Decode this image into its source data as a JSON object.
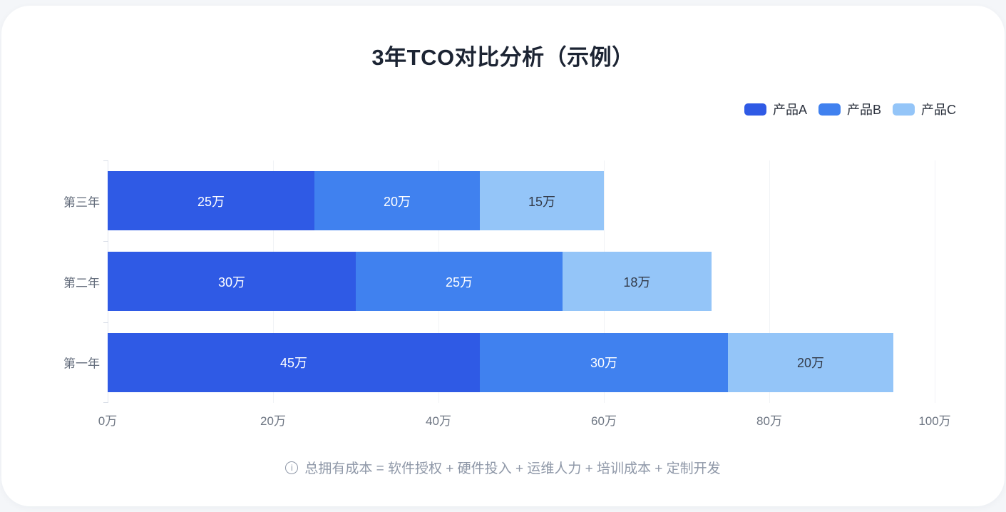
{
  "page": {
    "title": "3年TCO对比分析（示例）"
  },
  "footer": {
    "icon": "info-icon",
    "text": "总拥有成本 = 软件授权 + 硬件投入 + 运维人力 + 培训成本 + 定制开发"
  },
  "chart_data": {
    "type": "bar",
    "orientation": "horizontal",
    "stacked": true,
    "title": "3年TCO对比分析（示例）",
    "legend_position": "top-right",
    "grid": true,
    "xlabel": "",
    "ylabel": "",
    "xlim": [
      0,
      100
    ],
    "x_tick_values": [
      0,
      20,
      40,
      60,
      80,
      100
    ],
    "x_tick_labels": [
      "0万",
      "20万",
      "40万",
      "60万",
      "80万",
      "100万"
    ],
    "value_suffix": "万",
    "series": [
      {
        "name": "产品A",
        "color": "#2F5AE5",
        "label_color": "#FFFFFF",
        "values": [
          45,
          30,
          25
        ]
      },
      {
        "name": "产品B",
        "color": "#4081EF",
        "label_color": "#FFFFFF",
        "values": [
          30,
          25,
          20
        ]
      },
      {
        "name": "产品C",
        "color": "#94C5F8",
        "label_color": "#333B49",
        "values": [
          20,
          18,
          15
        ]
      }
    ],
    "categories": [
      "第一年",
      "第二年",
      "第三年"
    ],
    "rows_display_order": [
      {
        "category": "第三年",
        "values": [
          25,
          20,
          15
        ],
        "total": 60
      },
      {
        "category": "第二年",
        "values": [
          30,
          25,
          18
        ],
        "total": 73
      },
      {
        "category": "第一年",
        "values": [
          45,
          30,
          20
        ],
        "total": 95
      }
    ]
  },
  "colors": {
    "background": "#F4F6F9",
    "card": "#FFFFFF",
    "title": "#1C2433",
    "axis_label": "#6E7683",
    "category_label": "#646D7C",
    "grid_line": "#F1F3F6",
    "axis_line": "#E3E7EE",
    "footer_text": "#8F98A8",
    "series_a": "#2F5AE5",
    "series_b": "#4081EF",
    "series_c": "#94C5F8"
  }
}
